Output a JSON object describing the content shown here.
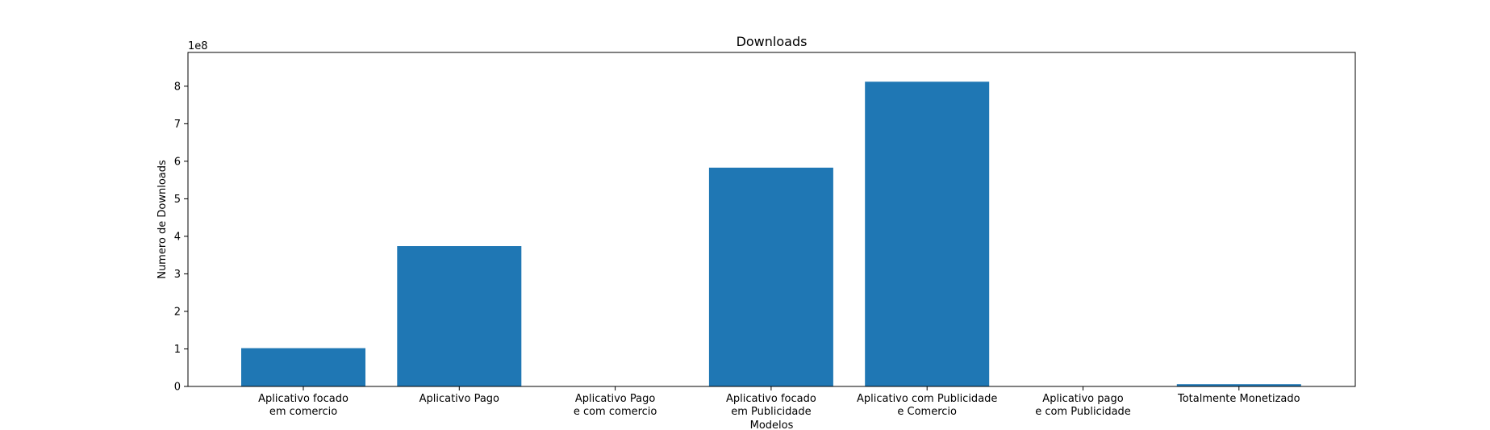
{
  "chart_data": {
    "type": "bar",
    "title": "Downloads",
    "xlabel": "Modelos",
    "ylabel": "Numero de Downloads",
    "y_offset_label": "1e8",
    "ylim": [
      0,
      890000000
    ],
    "yticks": [
      0,
      1,
      2,
      3,
      4,
      5,
      6,
      7,
      8
    ],
    "ytick_scale": 100000000,
    "categories": [
      [
        "Aplicativo focado",
        "em comercio"
      ],
      [
        "Aplicativo Pago"
      ],
      [
        "Aplicativo Pago",
        "e com comercio"
      ],
      [
        "Aplicativo focado",
        "em Publicidade"
      ],
      [
        "Aplicativo com Publicidade",
        "e Comercio"
      ],
      [
        "Aplicativo pago",
        "e com Publicidade"
      ],
      [
        "Totalmente Monetizado"
      ]
    ],
    "values": [
      102000000,
      374000000,
      0,
      583000000,
      812000000,
      0,
      6000000
    ],
    "bar_color": "#1f77b4",
    "grid": false
  }
}
